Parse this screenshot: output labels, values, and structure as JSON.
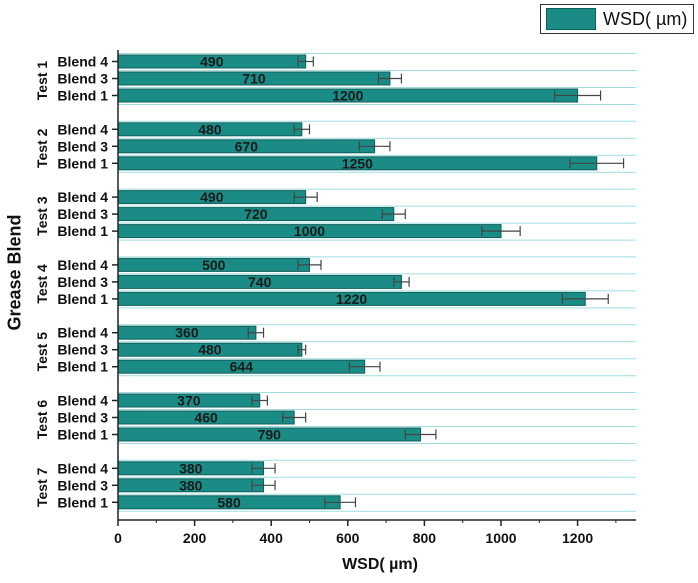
{
  "chart_data": {
    "type": "bar",
    "orientation": "horizontal",
    "xlabel": "WSD( µm)",
    "ylabel": "Grease Blend",
    "xlim": [
      0,
      1300
    ],
    "xticks": [
      "0",
      "200",
      "400",
      "600",
      "800",
      "1000",
      "1200"
    ],
    "legend": {
      "label": "WSD( µm)",
      "placement": "top-right"
    },
    "colors": {
      "bar": "#1a8c85",
      "bar_edge": "#0e5f5a",
      "grid": "#9fdde0",
      "axis": "#222222",
      "error": "#444444"
    },
    "grid": true,
    "groups": [
      {
        "name": "Test 1",
        "bars": [
          {
            "label": "Blend 4",
            "value": 490,
            "value_label": "490",
            "error": 20
          },
          {
            "label": "Blend 3",
            "value": 710,
            "value_label": "710",
            "error": 30
          },
          {
            "label": "Blend 1",
            "value": 1200,
            "value_label": "1200",
            "error": 60
          }
        ]
      },
      {
        "name": "Test 2",
        "bars": [
          {
            "label": "Blend 4",
            "value": 480,
            "value_label": "480",
            "error": 20
          },
          {
            "label": "Blend 3",
            "value": 670,
            "value_label": "670",
            "error": 40
          },
          {
            "label": "Blend 1",
            "value": 1250,
            "value_label": "1250",
            "error": 70
          }
        ]
      },
      {
        "name": "Test 3",
        "bars": [
          {
            "label": "Blend 4",
            "value": 490,
            "value_label": "490",
            "error": 30
          },
          {
            "label": "Blend 3",
            "value": 720,
            "value_label": "720",
            "error": 30
          },
          {
            "label": "Blend 1",
            "value": 1000,
            "value_label": "1000",
            "error": 50
          }
        ]
      },
      {
        "name": "Test 4",
        "bars": [
          {
            "label": "Blend 4",
            "value": 500,
            "value_label": "500",
            "error": 30
          },
          {
            "label": "Blend 3",
            "value": 740,
            "value_label": "740",
            "error": 20
          },
          {
            "label": "Blend 1",
            "value": 1220,
            "value_label": "1220",
            "error": 60
          }
        ]
      },
      {
        "name": "Test 5",
        "bars": [
          {
            "label": "Blend 4",
            "value": 360,
            "value_label": "360",
            "error": 20
          },
          {
            "label": "Blend 3",
            "value": 480,
            "value_label": "480",
            "error": 10
          },
          {
            "label": "Blend 1",
            "value": 644,
            "value_label": "644",
            "error": 40
          }
        ]
      },
      {
        "name": "Test 6",
        "bars": [
          {
            "label": "Blend 4",
            "value": 370,
            "value_label": "370",
            "error": 20
          },
          {
            "label": "Blend 3",
            "value": 460,
            "value_label": "460",
            "error": 30
          },
          {
            "label": "Blend 1",
            "value": 790,
            "value_label": "790",
            "error": 40
          }
        ]
      },
      {
        "name": "Test 7",
        "bars": [
          {
            "label": "Blend 4",
            "value": 380,
            "value_label": "380",
            "error": 30
          },
          {
            "label": "Blend 3",
            "value": 380,
            "value_label": "380",
            "error": 30
          },
          {
            "label": "Blend 1",
            "value": 580,
            "value_label": "580",
            "error": 40
          }
        ]
      }
    ]
  }
}
